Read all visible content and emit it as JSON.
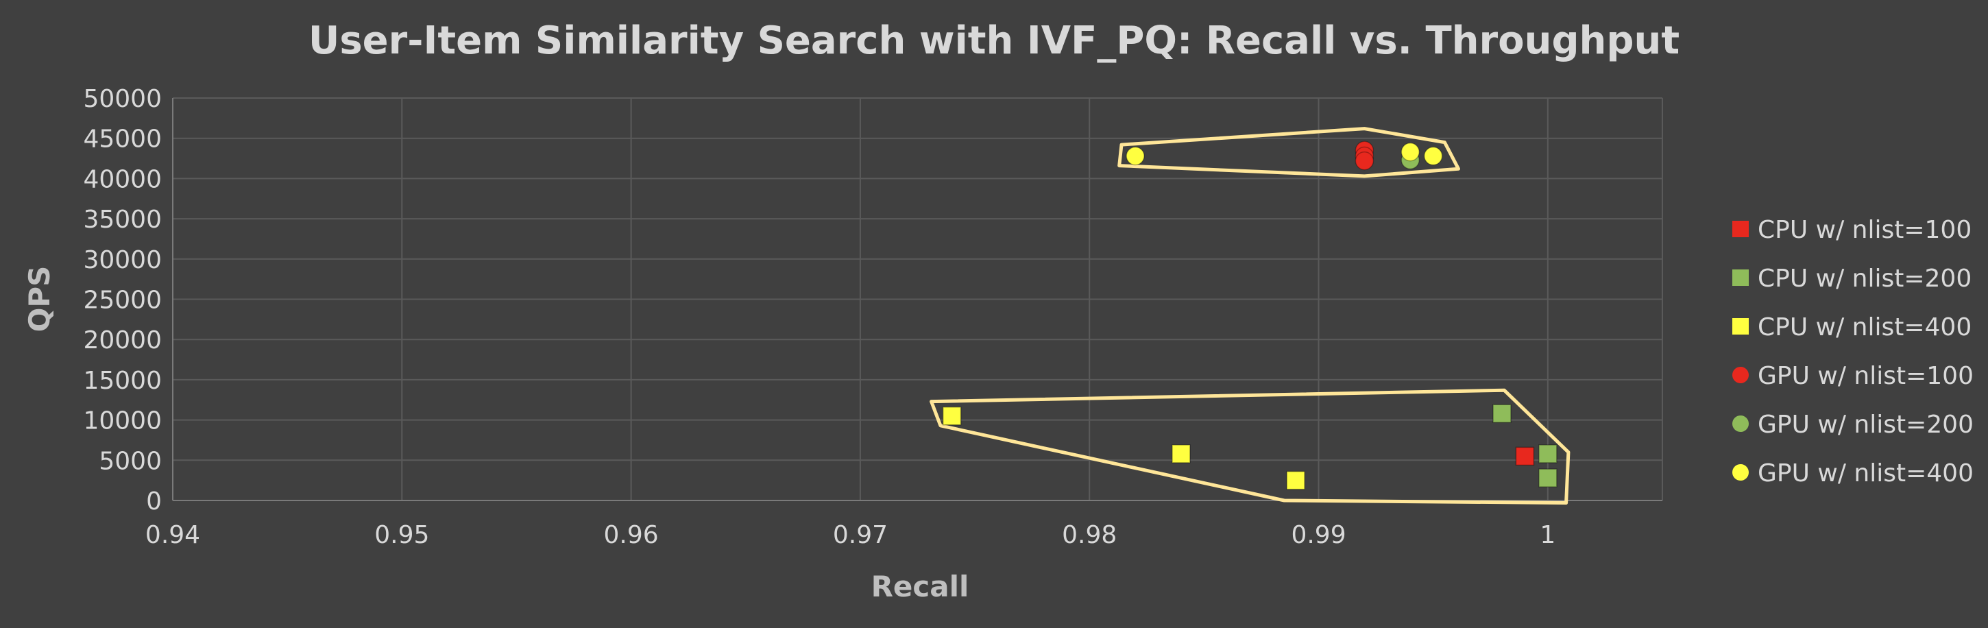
{
  "chart_data": {
    "type": "scatter",
    "title": "User-Item Similarity Search with IVF_PQ: Recall vs. Throughput",
    "xlabel": "Recall",
    "ylabel": "QPS",
    "xlim": [
      0.94,
      1.005
    ],
    "ylim": [
      0,
      50000
    ],
    "xticks": [
      0.94,
      0.95,
      0.96,
      0.97,
      0.98,
      0.99,
      1
    ],
    "xtick_labels": [
      "0.94",
      "0.95",
      "0.96",
      "0.97",
      "0.98",
      "0.99",
      "1"
    ],
    "yticks": [
      0,
      5000,
      10000,
      15000,
      20000,
      25000,
      30000,
      35000,
      40000,
      45000,
      50000
    ],
    "ytick_labels": [
      "0",
      "5000",
      "10000",
      "15000",
      "20000",
      "25000",
      "30000",
      "35000",
      "40000",
      "45000",
      "50000"
    ],
    "grid": true,
    "legend_position": "right",
    "series": [
      {
        "name": "CPU w/ nlist=100",
        "marker": "square",
        "color": "#e8281e",
        "points": [
          [
            0.999,
            5500
          ]
        ]
      },
      {
        "name": "CPU w/ nlist=200",
        "marker": "square",
        "color": "#8fbc5a",
        "points": [
          [
            0.998,
            10800
          ],
          [
            1.0,
            5800
          ],
          [
            1.0,
            2800
          ]
        ]
      },
      {
        "name": "CPU w/ nlist=400",
        "marker": "square",
        "color": "#ffff40",
        "points": [
          [
            0.974,
            10500
          ],
          [
            0.984,
            5800
          ],
          [
            0.989,
            2500
          ]
        ]
      },
      {
        "name": "GPU w/ nlist=100",
        "marker": "circle",
        "color": "#e8281e",
        "points": [
          [
            0.992,
            43500
          ],
          [
            0.992,
            42800
          ],
          [
            0.992,
            42200
          ]
        ]
      },
      {
        "name": "GPU w/ nlist=200",
        "marker": "circle",
        "color": "#8fbc5a",
        "points": [
          [
            0.994,
            42300
          ]
        ]
      },
      {
        "name": "GPU w/ nlist=400",
        "marker": "circle",
        "color": "#ffff40",
        "points": [
          [
            0.982,
            42800
          ],
          [
            0.994,
            43300
          ],
          [
            0.995,
            42800
          ]
        ]
      }
    ],
    "annotations": [
      {
        "shape": "polygon",
        "color": "#ffe699",
        "points": [
          [
            0.9814,
            44200
          ],
          [
            0.992,
            46200
          ],
          [
            0.9955,
            44500
          ],
          [
            0.9961,
            41200
          ],
          [
            0.992,
            40300
          ],
          [
            0.9813,
            41600
          ]
        ]
      },
      {
        "shape": "polygon",
        "color": "#ffe699",
        "points": [
          [
            0.9731,
            12300
          ],
          [
            0.9981,
            13700
          ],
          [
            1.0009,
            6000
          ],
          [
            1.0008,
            -300
          ],
          [
            0.9885,
            0
          ],
          [
            0.9735,
            9300
          ]
        ]
      }
    ]
  }
}
